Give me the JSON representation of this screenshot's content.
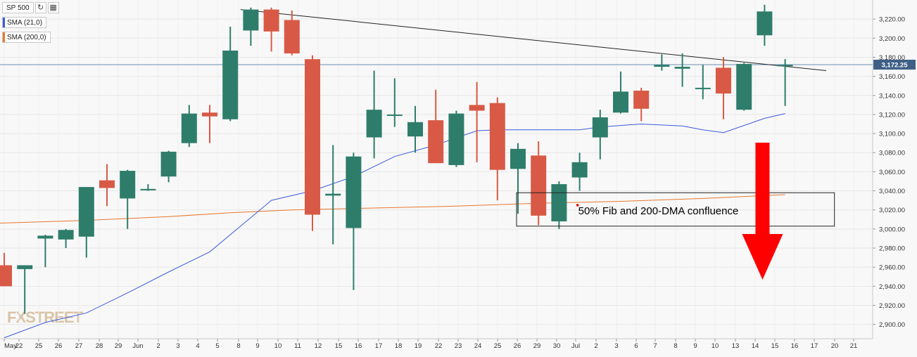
{
  "legend": {
    "symbol": "SP 500",
    "refresh_icon": "refresh-icon",
    "calendar_icon": "calendar-icon",
    "sma21_label": "SMA (21,0)",
    "sma200_label": "SMA (200,0)"
  },
  "colors": {
    "background": "#f8f8f8",
    "up": "#2e7d6b",
    "down": "#d85a46",
    "sma21": "#3b5bdb",
    "sma200": "#e8772e",
    "trendline": "#222222",
    "arrow": "#ff0000",
    "price_line": "#6a8fb0"
  },
  "watermark": "FXSTREET",
  "annotation": "50% Fib and 200-DMA confluence",
  "price_tag": "3,172.25",
  "chart_data": {
    "type": "candlestick",
    "title": "SP 500",
    "ylim": [
      2885,
      3240
    ],
    "y_ticks": [
      "2,900.00",
      "2,920.00",
      "2,940.00",
      "2,960.00",
      "2,980.00",
      "3,000.00",
      "3,020.00",
      "3,040.00",
      "3,060.00",
      "3,080.00",
      "3,100.00",
      "3,120.00",
      "3,140.00",
      "3,160.00",
      "3,180.00",
      "3,200.00",
      "3,220.00"
    ],
    "x_ticks": [
      "May",
      "22",
      "25",
      "26",
      "27",
      "28",
      "29",
      "Jun",
      "2",
      "3",
      "4",
      "5",
      "8",
      "9",
      "10",
      "11",
      "12",
      "15",
      "16",
      "17",
      "18",
      "19",
      "22",
      "23",
      "24",
      "25",
      "26",
      "29",
      "30",
      "Jul",
      "2",
      "3",
      "6",
      "7",
      "8",
      "9",
      "10",
      "13",
      "14",
      "15",
      "16",
      "17",
      "20",
      "21"
    ],
    "candles": [
      {
        "date": "May 21",
        "open": 2962,
        "high": 2975,
        "low": 2940,
        "close": 2940
      },
      {
        "date": "May 22",
        "open": 2958,
        "high": 2962,
        "low": 2911,
        "close": 2962
      },
      {
        "date": "May 26",
        "open": 2990,
        "high": 2994,
        "low": 2960,
        "close": 2993
      },
      {
        "date": "May 27",
        "open": 2989,
        "high": 3000,
        "low": 2980,
        "close": 2999
      },
      {
        "date": "May 28",
        "open": 2992,
        "high": 3044,
        "low": 2970,
        "close": 3044
      },
      {
        "date": "May 29",
        "open": 3051,
        "high": 3068,
        "low": 3024,
        "close": 3043
      },
      {
        "date": "Jun 1",
        "open": 3032,
        "high": 3062,
        "low": 3000,
        "close": 3061
      },
      {
        "date": "Jun 2",
        "open": 3042,
        "high": 3047,
        "low": 3040,
        "close": 3042
      },
      {
        "date": "Jun 3",
        "open": 3055,
        "high": 3082,
        "low": 3049,
        "close": 3081
      },
      {
        "date": "Jun 4",
        "open": 3090,
        "high": 3130,
        "low": 3086,
        "close": 3121
      },
      {
        "date": "Jun 5",
        "open": 3122,
        "high": 3130,
        "low": 3090,
        "close": 3118
      },
      {
        "date": "Jun 8",
        "open": 3115,
        "high": 3212,
        "low": 3113,
        "close": 3187
      },
      {
        "date": "Jun 9",
        "open": 3208,
        "high": 3232,
        "low": 3192,
        "close": 3230
      },
      {
        "date": "Jun 10",
        "open": 3230,
        "high": 3232,
        "low": 3186,
        "close": 3207
      },
      {
        "date": "Jun 11",
        "open": 3219,
        "high": 3229,
        "low": 3182,
        "close": 3184
      },
      {
        "date": "Jun 12",
        "open": 3178,
        "high": 3182,
        "low": 2998,
        "close": 3015
      },
      {
        "date": "Jun 15",
        "open": 3035,
        "high": 3088,
        "low": 2984,
        "close": 3037
      },
      {
        "date": "Jun 16",
        "open": 3001,
        "high": 3080,
        "low": 2936,
        "close": 3076
      },
      {
        "date": "Jun 17",
        "open": 3096,
        "high": 3166,
        "low": 3074,
        "close": 3125
      },
      {
        "date": "Jun 18",
        "open": 3120,
        "high": 3158,
        "low": 3107,
        "close": 3120
      },
      {
        "date": "Jun 19",
        "open": 3097,
        "high": 3129,
        "low": 3080,
        "close": 3112
      },
      {
        "date": "Jun 22",
        "open": 3114,
        "high": 3146,
        "low": 3069,
        "close": 3069
      },
      {
        "date": "Jun 23",
        "open": 3067,
        "high": 3124,
        "low": 3065,
        "close": 3121
      },
      {
        "date": "Jun 24",
        "open": 3130,
        "high": 3154,
        "low": 3070,
        "close": 3124
      },
      {
        "date": "Jun 25",
        "open": 3132,
        "high": 3138,
        "low": 3030,
        "close": 3062
      },
      {
        "date": "Jun 26",
        "open": 3063,
        "high": 3090,
        "low": 3016,
        "close": 3084
      },
      {
        "date": "Jun 29",
        "open": 3077,
        "high": 3092,
        "low": 3004,
        "close": 3014
      },
      {
        "date": "Jun 30",
        "open": 3008,
        "high": 3050,
        "low": 3000,
        "close": 3047
      },
      {
        "date": "Jul 1",
        "open": 3054,
        "high": 3080,
        "low": 3040,
        "close": 3070
      },
      {
        "date": "Jul 2",
        "open": 3096,
        "high": 3125,
        "low": 3073,
        "close": 3117
      },
      {
        "date": "Jul 6",
        "open": 3122,
        "high": 3165,
        "low": 3121,
        "close": 3144
      },
      {
        "date": "Jul 7",
        "open": 3145,
        "high": 3148,
        "low": 3113,
        "close": 3126
      },
      {
        "date": "Jul 8",
        "open": 3170,
        "high": 3183,
        "low": 3166,
        "close": 3172
      },
      {
        "date": "Jul 9",
        "open": 3168,
        "high": 3184,
        "low": 3149,
        "close": 3170
      },
      {
        "date": "Jul 10",
        "open": 3147,
        "high": 3172,
        "low": 3136,
        "close": 3148
      },
      {
        "date": "Jul 13",
        "open": 3169,
        "high": 3180,
        "low": 3115,
        "close": 3142
      },
      {
        "date": "Jul 14",
        "open": 3125,
        "high": 3174,
        "low": 3124,
        "close": 3173
      },
      {
        "date": "Jul 15",
        "open": 3203,
        "high": 3235,
        "low": 3192,
        "close": 3228
      },
      {
        "date": "Jul 16",
        "open": 3172,
        "high": 3178,
        "low": 3129,
        "close": 3172
      }
    ],
    "sma21": [
      {
        "x": 0,
        "y": 2886
      },
      {
        "x": 2,
        "y": 2902
      },
      {
        "x": 4,
        "y": 2912
      },
      {
        "x": 6,
        "y": 2933
      },
      {
        "x": 8,
        "y": 2955
      },
      {
        "x": 10,
        "y": 2976
      },
      {
        "x": 12,
        "y": 3012
      },
      {
        "x": 13,
        "y": 3030
      },
      {
        "x": 15,
        "y": 3040
      },
      {
        "x": 17,
        "y": 3055
      },
      {
        "x": 19,
        "y": 3076
      },
      {
        "x": 21,
        "y": 3088
      },
      {
        "x": 23,
        "y": 3103
      },
      {
        "x": 24,
        "y": 3104
      },
      {
        "x": 26,
        "y": 3104
      },
      {
        "x": 28,
        "y": 3104
      },
      {
        "x": 29,
        "y": 3107
      },
      {
        "x": 31,
        "y": 3110
      },
      {
        "x": 33,
        "y": 3108
      },
      {
        "x": 34,
        "y": 3104
      },
      {
        "x": 35,
        "y": 3101
      },
      {
        "x": 37,
        "y": 3116
      },
      {
        "x": 38,
        "y": 3121
      }
    ],
    "sma200": [
      {
        "x": -0.4,
        "y": 3006
      },
      {
        "x": 4,
        "y": 3009
      },
      {
        "x": 8,
        "y": 3013
      },
      {
        "x": 11,
        "y": 3017
      },
      {
        "x": 14,
        "y": 3020
      },
      {
        "x": 18,
        "y": 3022
      },
      {
        "x": 22,
        "y": 3024
      },
      {
        "x": 26,
        "y": 3027
      },
      {
        "x": 30,
        "y": 3029
      },
      {
        "x": 34,
        "y": 3032
      },
      {
        "x": 37,
        "y": 3035
      },
      {
        "x": 38,
        "y": 3036
      }
    ],
    "trendline": [
      {
        "x": 11.5,
        "y": 3230
      },
      {
        "x": 40,
        "y": 3166
      }
    ],
    "current_price": 3172.25
  }
}
